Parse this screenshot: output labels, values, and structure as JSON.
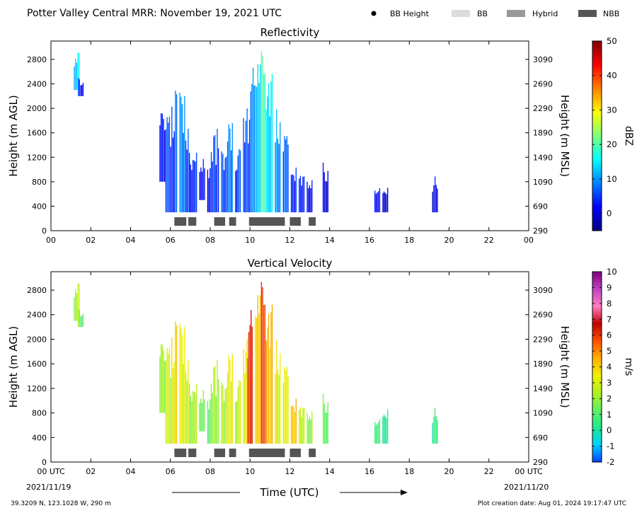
{
  "header": {
    "title": "Potter Valley Central MRR:  November 19, 2021 UTC",
    "legend": [
      {
        "label": "BB Height",
        "marker": "dot",
        "color": "#000000"
      },
      {
        "label": "BB",
        "marker": "box",
        "color": "#dcdcdc"
      },
      {
        "label": "Hybrid",
        "marker": "box",
        "color": "#999999"
      },
      {
        "label": "NBB",
        "marker": "box",
        "color": "#555555"
      }
    ]
  },
  "footer": {
    "location": "39.3209 N, 123.1028 W, 290 m",
    "creation": "Plot creation date: Aug 01, 2024 19:17:47 UTC",
    "time_label": "Time (UTC)",
    "start_date": "2021/11/19",
    "end_date": "2021/11/20"
  },
  "colors": {
    "nbb": "#555555",
    "refl_stops": [
      "#00007f",
      "#0000ff",
      "#0080ff",
      "#00ffff",
      "#7dff7a",
      "#ffff00",
      "#ff8000",
      "#ff0000",
      "#7f0000"
    ],
    "vel_stops": [
      "#0040ff",
      "#00d0ff",
      "#20e890",
      "#60f060",
      "#b0f020",
      "#f0f000",
      "#ffb000",
      "#ff5000",
      "#c00000",
      "#ff80c0",
      "#c040c0",
      "#800080"
    ]
  },
  "chart_data": [
    {
      "id": "reflectivity",
      "type": "heatmap",
      "title": "Reflectivity",
      "xlabel": "",
      "ylabel": "Height (m AGL)",
      "y2label": "Height (m MSL)",
      "xlim": [
        0,
        24
      ],
      "ylim": [
        0,
        3100
      ],
      "y2lim": [
        290,
        3390
      ],
      "xticks": [
        "00",
        "02",
        "04",
        "06",
        "08",
        "10",
        "12",
        "14",
        "16",
        "18",
        "20",
        "22",
        "00"
      ],
      "yticks": [
        0,
        400,
        800,
        1200,
        1600,
        2000,
        2400,
        2800
      ],
      "y2ticks": [
        290,
        690,
        1090,
        1490,
        1890,
        2290,
        2690,
        3090
      ],
      "colorbar": {
        "label": "dBZ",
        "ticks": [
          0,
          10,
          20,
          30,
          40,
          50
        ],
        "range": [
          -5,
          50
        ]
      },
      "echo_columns": [
        {
          "t": 1.3,
          "bottom": 2300,
          "top": 3000,
          "value": 14
        },
        {
          "t": 1.5,
          "bottom": 2200,
          "top": 2500,
          "value": 3
        },
        {
          "t": 5.6,
          "bottom": 800,
          "top": 2100,
          "value": 2
        },
        {
          "t": 5.9,
          "bottom": 300,
          "top": 1900,
          "value": 4
        },
        {
          "t": 6.2,
          "bottom": 300,
          "top": 2300,
          "value": 5
        },
        {
          "t": 6.6,
          "bottom": 300,
          "top": 2400,
          "value": 8
        },
        {
          "t": 6.9,
          "bottom": 300,
          "top": 1700,
          "value": 4
        },
        {
          "t": 7.2,
          "bottom": 300,
          "top": 1300,
          "value": 3
        },
        {
          "t": 7.6,
          "bottom": 500,
          "top": 1200,
          "value": 2
        },
        {
          "t": 8.0,
          "bottom": 300,
          "top": 1300,
          "value": 3
        },
        {
          "t": 8.3,
          "bottom": 300,
          "top": 1700,
          "value": 4
        },
        {
          "t": 8.7,
          "bottom": 300,
          "top": 1500,
          "value": 6
        },
        {
          "t": 9.0,
          "bottom": 300,
          "top": 1800,
          "value": 7
        },
        {
          "t": 9.4,
          "bottom": 300,
          "top": 1400,
          "value": 5
        },
        {
          "t": 9.8,
          "bottom": 300,
          "top": 2200,
          "value": 6
        },
        {
          "t": 10.1,
          "bottom": 300,
          "top": 2800,
          "value": 8
        },
        {
          "t": 10.4,
          "bottom": 300,
          "top": 3000,
          "value": 12
        },
        {
          "t": 10.7,
          "bottom": 300,
          "top": 3000,
          "value": 18
        },
        {
          "t": 11.0,
          "bottom": 300,
          "top": 2600,
          "value": 12
        },
        {
          "t": 11.4,
          "bottom": 300,
          "top": 2000,
          "value": 9
        },
        {
          "t": 11.8,
          "bottom": 300,
          "top": 1700,
          "value": 6
        },
        {
          "t": 12.2,
          "bottom": 300,
          "top": 1200,
          "value": 5
        },
        {
          "t": 12.6,
          "bottom": 300,
          "top": 1000,
          "value": 3
        },
        {
          "t": 13.0,
          "bottom": 300,
          "top": 900,
          "value": 2
        },
        {
          "t": 13.8,
          "bottom": 300,
          "top": 1200,
          "value": 1
        },
        {
          "t": 16.4,
          "bottom": 300,
          "top": 700,
          "value": 1
        },
        {
          "t": 16.8,
          "bottom": 300,
          "top": 800,
          "value": 1
        },
        {
          "t": 19.3,
          "bottom": 300,
          "top": 900,
          "value": 1
        }
      ],
      "nbb_segments": [
        [
          6.2,
          6.8
        ],
        [
          6.9,
          7.3
        ],
        [
          8.2,
          8.75
        ],
        [
          8.95,
          9.3
        ],
        [
          9.95,
          11.75
        ],
        [
          12.0,
          12.55
        ],
        [
          12.95,
          13.3
        ]
      ]
    },
    {
      "id": "velocity",
      "type": "heatmap",
      "title": "Vertical Velocity",
      "xlabel": "Time (UTC)",
      "ylabel": "Height (m AGL)",
      "y2label": "Height (m MSL)",
      "xlim": [
        0,
        24
      ],
      "ylim": [
        0,
        3100
      ],
      "y2lim": [
        290,
        3390
      ],
      "xticks": [
        "00 UTC",
        "02",
        "04",
        "06",
        "08",
        "10",
        "12",
        "14",
        "16",
        "18",
        "20",
        "22",
        "00 UTC"
      ],
      "yticks": [
        0,
        400,
        800,
        1200,
        1600,
        2000,
        2400,
        2800
      ],
      "y2ticks": [
        290,
        690,
        1090,
        1490,
        1890,
        2290,
        2690,
        3090
      ],
      "colorbar": {
        "label": "m/s",
        "ticks": [
          -2,
          -1,
          0,
          1,
          2,
          3,
          4,
          5,
          6,
          7,
          8,
          9,
          10
        ],
        "range": [
          -2,
          10
        ]
      },
      "echo_columns": [
        {
          "t": 1.3,
          "bottom": 2300,
          "top": 3000,
          "value": 2.5
        },
        {
          "t": 1.5,
          "bottom": 2200,
          "top": 2500,
          "value": 1.5
        },
        {
          "t": 5.6,
          "bottom": 800,
          "top": 2100,
          "value": 2
        },
        {
          "t": 5.9,
          "bottom": 300,
          "top": 1900,
          "value": 2.5
        },
        {
          "t": 6.2,
          "bottom": 300,
          "top": 2300,
          "value": 3.5
        },
        {
          "t": 6.6,
          "bottom": 300,
          "top": 2400,
          "value": 3
        },
        {
          "t": 6.9,
          "bottom": 300,
          "top": 1700,
          "value": 2.5
        },
        {
          "t": 7.2,
          "bottom": 300,
          "top": 1300,
          "value": 2
        },
        {
          "t": 7.6,
          "bottom": 500,
          "top": 1200,
          "value": 1.5
        },
        {
          "t": 8.0,
          "bottom": 300,
          "top": 1300,
          "value": 1.5
        },
        {
          "t": 8.3,
          "bottom": 300,
          "top": 1700,
          "value": 2
        },
        {
          "t": 8.7,
          "bottom": 300,
          "top": 1500,
          "value": 2.5
        },
        {
          "t": 9.0,
          "bottom": 300,
          "top": 1800,
          "value": 3
        },
        {
          "t": 9.4,
          "bottom": 300,
          "top": 1400,
          "value": 2.5
        },
        {
          "t": 9.8,
          "bottom": 300,
          "top": 2200,
          "value": 3.5
        },
        {
          "t": 10.0,
          "bottom": 300,
          "top": 2600,
          "value": 6
        },
        {
          "t": 10.4,
          "bottom": 300,
          "top": 3000,
          "value": 4
        },
        {
          "t": 10.7,
          "bottom": 300,
          "top": 3000,
          "value": 5.5
        },
        {
          "t": 11.0,
          "bottom": 300,
          "top": 2600,
          "value": 4
        },
        {
          "t": 11.4,
          "bottom": 300,
          "top": 2000,
          "value": 3
        },
        {
          "t": 11.8,
          "bottom": 300,
          "top": 1700,
          "value": 3
        },
        {
          "t": 12.2,
          "bottom": 300,
          "top": 1200,
          "value": 4.5
        },
        {
          "t": 12.6,
          "bottom": 300,
          "top": 1000,
          "value": 2.5
        },
        {
          "t": 13.0,
          "bottom": 300,
          "top": 900,
          "value": 2
        },
        {
          "t": 13.8,
          "bottom": 300,
          "top": 1200,
          "value": 1.5
        },
        {
          "t": 16.4,
          "bottom": 300,
          "top": 700,
          "value": 0.5
        },
        {
          "t": 16.8,
          "bottom": 300,
          "top": 1000,
          "value": 0.5
        },
        {
          "t": 19.3,
          "bottom": 300,
          "top": 900,
          "value": 0.5
        }
      ],
      "nbb_segments": [
        [
          6.2,
          6.8
        ],
        [
          6.9,
          7.3
        ],
        [
          8.2,
          8.75
        ],
        [
          8.95,
          9.3
        ],
        [
          9.95,
          11.75
        ],
        [
          12.0,
          12.55
        ],
        [
          12.95,
          13.3
        ]
      ]
    }
  ]
}
